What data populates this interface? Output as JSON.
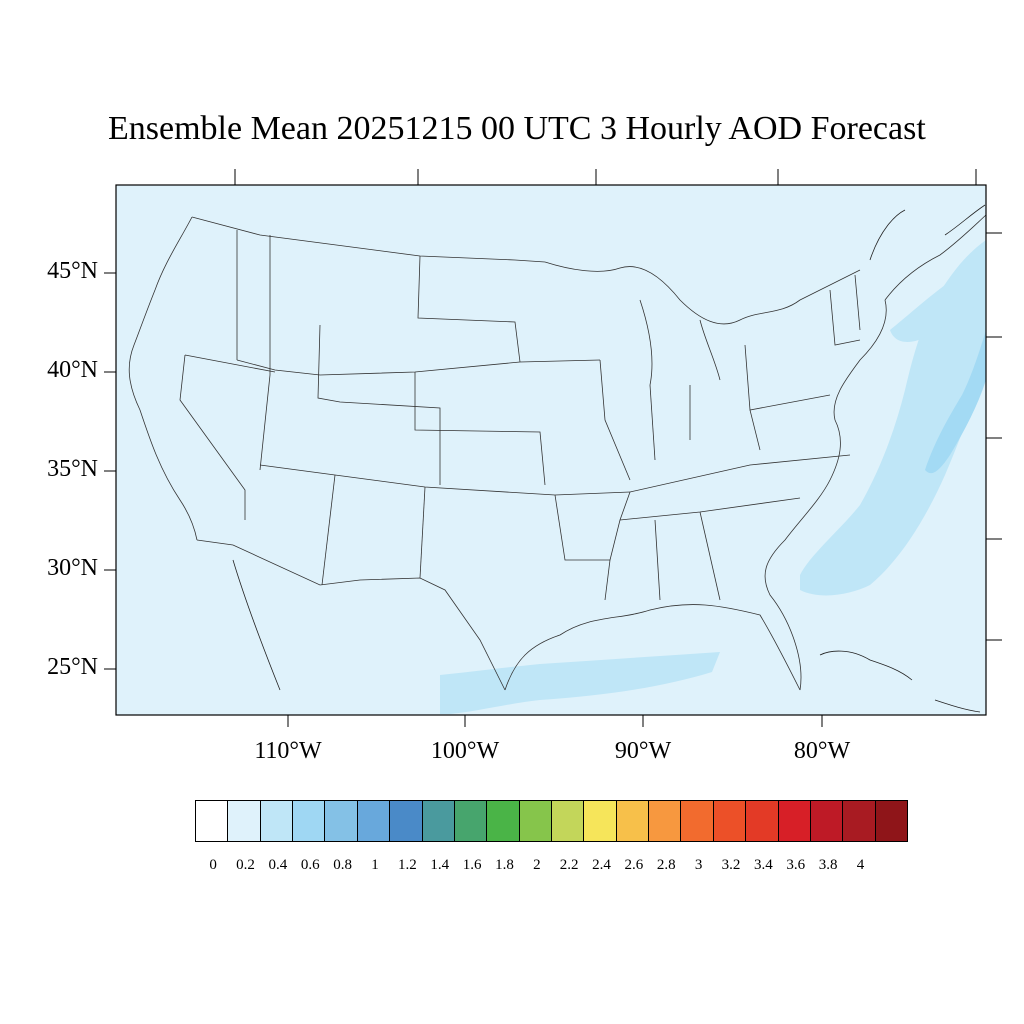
{
  "title": "Ensemble Mean 20251215 00 UTC 3 Hourly AOD Forecast",
  "map": {
    "region": "Contiguous United States",
    "lat_labels": [
      "45°N",
      "40°N",
      "35°N",
      "30°N",
      "25°N"
    ],
    "lon_labels": [
      "110°W",
      "100°W",
      "90°W",
      "80°W"
    ],
    "background_color": "#dff2fb",
    "plume_color": "#bfe6f7",
    "plume_dark_color": "#a3daf4",
    "border_color": "#333333"
  },
  "colorbar": {
    "labels": [
      "0",
      "0.2",
      "0.4",
      "0.6",
      "0.8",
      "1",
      "1.2",
      "1.4",
      "1.6",
      "1.8",
      "2",
      "2.2",
      "2.4",
      "2.6",
      "2.8",
      "3",
      "3.2",
      "3.4",
      "3.6",
      "3.8",
      "4"
    ],
    "colors": [
      "#ffffff",
      "#dff2fb",
      "#bfe6f7",
      "#9fd7f3",
      "#84c1e6",
      "#68a8dc",
      "#4a8ac8",
      "#4a9a9e",
      "#47a56d",
      "#4ab447",
      "#86c54b",
      "#c3d65a",
      "#f6e55a",
      "#f7c04a",
      "#f7983f",
      "#f26b2e",
      "#ec5028",
      "#e33a26",
      "#d71f27",
      "#be1a26",
      "#a81b22",
      "#8f1519"
    ]
  }
}
